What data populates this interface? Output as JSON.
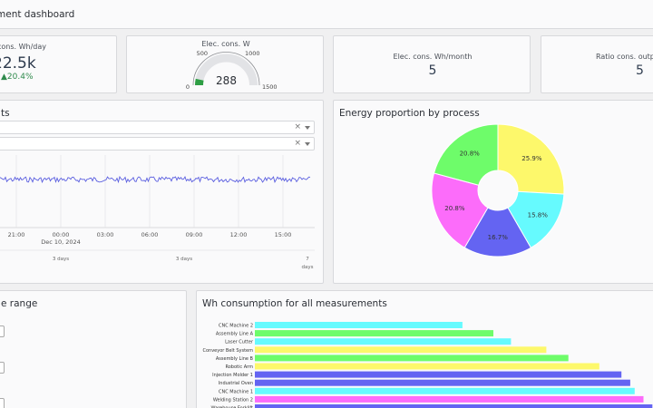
{
  "header": {
    "title": "ment dashboard"
  },
  "kpis": {
    "daily": {
      "label": "cons. Wh/day",
      "value": "22.5k",
      "delta": "▲20.4%"
    },
    "power": {
      "label": "Elec. cons. W",
      "value": "288",
      "ticks": [
        "0",
        "500",
        "1000",
        "1500"
      ],
      "min": 0,
      "max": 1500,
      "green_to": 100
    },
    "monthly": {
      "label": "Elec. cons. Wh/month",
      "value": "5"
    },
    "ratio": {
      "label": "Ratio cons. output",
      "value": "5"
    }
  },
  "measurements": {
    "title": "ts",
    "selects": [
      {
        "clear": "×"
      },
      {
        "clear": "×"
      }
    ],
    "time_ticks": [
      "21:00",
      "00:00",
      "03:00",
      "06:00",
      "09:00",
      "12:00",
      "15:00"
    ],
    "date_label": "Dec 10, 2024",
    "range_labels": [
      "3 days",
      "3 days",
      "7"
    ],
    "range_sub": "days"
  },
  "range": {
    "title": "e range"
  },
  "proportion": {
    "title": "Energy proportion by process",
    "chart_data": {
      "type": "pie",
      "title": "Energy proportion by process",
      "slices": [
        {
          "value": 25.9,
          "label": "25.9%",
          "color": "#fdf86b"
        },
        {
          "value": 15.8,
          "label": "15.8%",
          "color": "#66fafe"
        },
        {
          "value": 16.7,
          "label": "16.7%",
          "color": "#6464f2"
        },
        {
          "value": 20.8,
          "label": "20.8%",
          "color": "#fc6cfa"
        },
        {
          "value": 20.8,
          "label": "20.8%",
          "color": "#6efc6a"
        }
      ]
    }
  },
  "consumption": {
    "title": "Wh consumption for all measurements",
    "chart_data": {
      "type": "bar",
      "orientation": "horizontal",
      "categories": [
        "CNC Machine 2",
        "Assembly Line A",
        "Laser Cutter",
        "Conveyor Belt System",
        "Assembly Line B",
        "Robotic Arm",
        "Injection Molder 1",
        "Industrial Oven",
        "CNC Machine 1",
        "Welding Station 2",
        "Warehouse Forklift"
      ],
      "values": [
        235,
        270,
        290,
        330,
        355,
        390,
        415,
        425,
        430,
        440,
        450
      ],
      "colors": [
        "#66fafe",
        "#6efc6a",
        "#66fafe",
        "#fdf86b",
        "#6efc6a",
        "#fdf86b",
        "#6464f2",
        "#6464f2",
        "#66fafe",
        "#fc6cfa",
        "#6464f2"
      ],
      "xlim": [
        0,
        460
      ]
    }
  }
}
